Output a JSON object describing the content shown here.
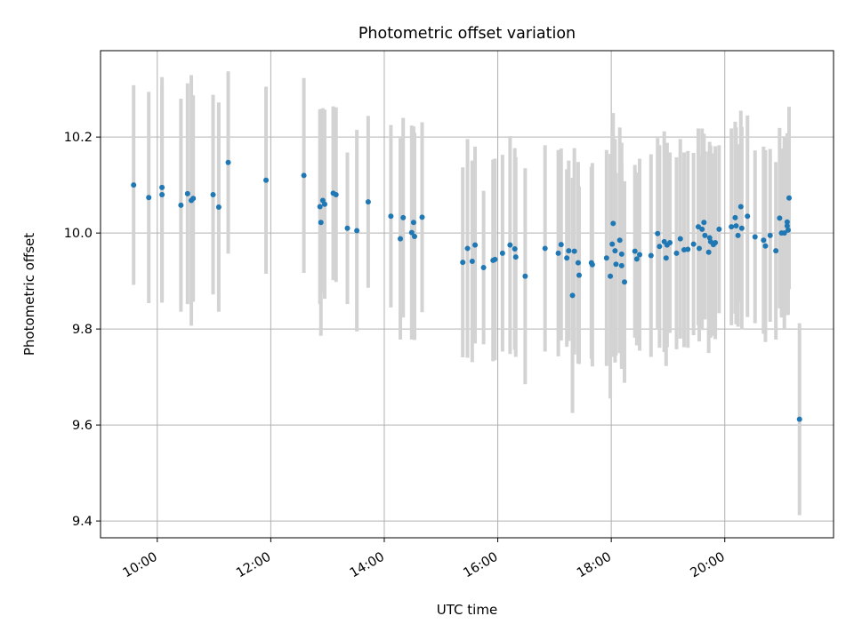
{
  "chart_data": {
    "type": "scatter",
    "title": "Photometric offset variation",
    "xlabel": "UTC time",
    "ylabel": "Photometric offset",
    "x_unit": "hours (UTC)",
    "xlim": [
      "09:00",
      "21:55"
    ],
    "ylim": [
      9.365,
      10.38
    ],
    "xticks": [
      "10:00",
      "12:00",
      "14:00",
      "16:00",
      "18:00",
      "20:00"
    ],
    "yticks": [
      "9.4",
      "9.6",
      "9.8",
      "10.0",
      "10.2"
    ],
    "grid": true,
    "marker_color": "#1f77b4",
    "errorbar_color": "#d3d3d3",
    "series": [
      {
        "points": [
          [
            "09:35",
            10.1,
            0.208
          ],
          [
            "09:51",
            10.074,
            0.22
          ],
          [
            "10:05",
            10.095,
            0.23
          ],
          [
            "10:05",
            10.08,
            0.225
          ],
          [
            "10:25",
            10.058,
            0.222
          ],
          [
            "10:32",
            10.082,
            0.23
          ],
          [
            "10:36",
            10.068,
            0.261
          ],
          [
            "10:38",
            10.072,
            0.215
          ],
          [
            "10:59",
            10.08,
            0.208
          ],
          [
            "11:05",
            10.054,
            0.218
          ],
          [
            "11:15",
            10.147,
            0.19
          ],
          [
            "11:55",
            10.11,
            0.195
          ],
          [
            "12:35",
            10.12,
            0.203
          ],
          [
            "12:52",
            10.055,
            0.203
          ],
          [
            "12:53",
            10.022,
            0.236
          ],
          [
            "12:55",
            10.068,
            0.192
          ],
          [
            "12:57",
            10.06,
            0.197
          ],
          [
            "13:06",
            10.083,
            0.181
          ],
          [
            "13:09",
            10.08,
            0.182
          ],
          [
            "13:21",
            10.01,
            0.158
          ],
          [
            "13:31",
            10.005,
            0.21
          ],
          [
            "13:43",
            10.065,
            0.179
          ],
          [
            "14:07",
            10.035,
            0.19
          ],
          [
            "14:17",
            9.988,
            0.21
          ],
          [
            "14:20",
            10.032,
            0.208
          ],
          [
            "14:29",
            10.001,
            0.223
          ],
          [
            "14:31",
            10.022,
            0.2
          ],
          [
            "14:32",
            9.993,
            0.216
          ],
          [
            "14:40",
            10.033,
            0.198
          ],
          [
            "15:23",
            9.939,
            0.198
          ],
          [
            "15:28",
            9.968,
            0.228
          ],
          [
            "15:33",
            9.941,
            0.21
          ],
          [
            "15:36",
            9.975,
            0.205
          ],
          [
            "15:45",
            9.928,
            0.16
          ],
          [
            "15:55",
            9.943,
            0.21
          ],
          [
            "15:57",
            9.945,
            0.21
          ],
          [
            "16:05",
            9.958,
            0.205
          ],
          [
            "16:13",
            9.975,
            0.227
          ],
          [
            "16:18",
            9.967,
            0.21
          ],
          [
            "16:19",
            9.95,
            0.208
          ],
          [
            "16:29",
            9.91,
            0.225
          ],
          [
            "16:50",
            9.968,
            0.215
          ],
          [
            "17:04",
            9.958,
            0.215
          ],
          [
            "17:07",
            9.976,
            0.2
          ],
          [
            "17:13",
            9.948,
            0.185
          ],
          [
            "17:15",
            9.963,
            0.188
          ],
          [
            "17:19",
            9.87,
            0.245
          ],
          [
            "17:21",
            9.962,
            0.215
          ],
          [
            "17:25",
            9.938,
            0.21
          ],
          [
            "17:26",
            9.912,
            0.185
          ],
          [
            "17:39",
            9.938,
            0.2
          ],
          [
            "17:40",
            9.934,
            0.212
          ],
          [
            "17:55",
            9.948,
            0.225
          ],
          [
            "17:59",
            9.91,
            0.255
          ],
          [
            "18:01",
            9.977,
            0.235
          ],
          [
            "18:02",
            10.02,
            0.23
          ],
          [
            "18:04",
            9.963,
            0.233
          ],
          [
            "18:05",
            9.935,
            0.19
          ],
          [
            "18:09",
            9.985,
            0.235
          ],
          [
            "18:11",
            9.956,
            0.232
          ],
          [
            "18:11",
            9.932,
            0.215
          ],
          [
            "18:14",
            9.898,
            0.21
          ],
          [
            "18:25",
            9.962,
            0.18
          ],
          [
            "18:27",
            9.946,
            0.18
          ],
          [
            "18:30",
            9.955,
            0.2
          ],
          [
            "18:42",
            9.953,
            0.211
          ],
          [
            "18:49",
            9.999,
            0.199
          ],
          [
            "18:51",
            9.972,
            0.211
          ],
          [
            "18:56",
            9.982,
            0.23
          ],
          [
            "18:58",
            9.948,
            0.225
          ],
          [
            "18:59",
            9.975,
            0.213
          ],
          [
            "19:02",
            9.98,
            0.188
          ],
          [
            "19:09",
            9.958,
            0.2
          ],
          [
            "19:13",
            9.988,
            0.208
          ],
          [
            "19:17",
            9.965,
            0.203
          ],
          [
            "19:21",
            9.966,
            0.205
          ],
          [
            "19:27",
            9.977,
            0.19
          ],
          [
            "19:32",
            10.013,
            0.205
          ],
          [
            "19:33",
            9.968,
            0.194
          ],
          [
            "19:36",
            10.008,
            0.21
          ],
          [
            "19:38",
            10.022,
            0.185
          ],
          [
            "19:39",
            9.995,
            0.175
          ],
          [
            "19:43",
            9.96,
            0.21
          ],
          [
            "19:44",
            9.99,
            0.2
          ],
          [
            "19:45",
            9.982,
            0.2
          ],
          [
            "19:48",
            9.976,
            0.19
          ],
          [
            "19:50",
            9.98,
            0.201
          ],
          [
            "19:54",
            10.008,
            0.175
          ],
          [
            "20:07",
            10.013,
            0.205
          ],
          [
            "20:11",
            10.032,
            0.2
          ],
          [
            "20:12",
            10.015,
            0.205
          ],
          [
            "20:14",
            9.995,
            0.19
          ],
          [
            "20:17",
            10.055,
            0.2
          ],
          [
            "20:18",
            10.01,
            0.211
          ],
          [
            "20:24",
            10.035,
            0.21
          ],
          [
            "20:32",
            9.992,
            0.18
          ],
          [
            "20:41",
            9.985,
            0.195
          ],
          [
            "20:43",
            9.973,
            0.2
          ],
          [
            "20:48",
            9.995,
            0.18
          ],
          [
            "20:54",
            9.963,
            0.185
          ],
          [
            "20:58",
            10.031,
            0.188
          ],
          [
            "21:00",
            10.0,
            0.176
          ],
          [
            "21:03",
            10.0,
            0.2
          ],
          [
            "21:06",
            10.023,
            0.185
          ],
          [
            "21:06",
            10.015,
            0.186
          ],
          [
            "21:07",
            10.006,
            0.176
          ],
          [
            "21:08",
            10.073,
            0.19
          ],
          [
            "21:19",
            9.612,
            0.2
          ]
        ]
      }
    ]
  }
}
